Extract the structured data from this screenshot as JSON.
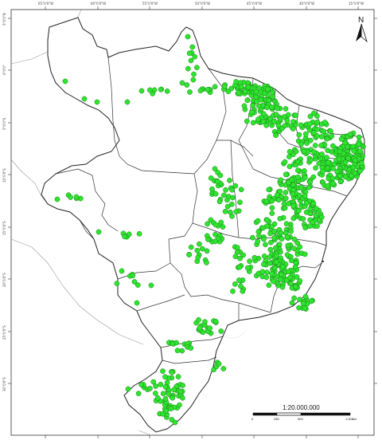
{
  "map": {
    "north_label": "N",
    "scale_text": "1:20.000.000",
    "scale_bar_labels": [
      "0",
      "250",
      "500",
      "1.000"
    ],
    "scale_bar_unit": "km",
    "top_tick_labels": [
      "65°0'0\"W",
      "60°0'0\"W",
      "55°0'0\"W",
      "50°0'0\"W",
      "45°0'0\"W",
      "40°0'0\"W",
      "35°0'0\"W"
    ],
    "left_tick_labels": [
      "5°0'0\"N",
      "0°0'0\"",
      "5°0'0\"S",
      "10°0'0\"S",
      "15°0'0\"S",
      "20°0'0\"S",
      "25°0'0\"S",
      "30°0'0\"S"
    ],
    "colors": {
      "occurrence_point": "#2ee52e",
      "point_stroke": "#1a7a1a",
      "brazil_fill": "#ffffff",
      "state_border": "#2a2a2a",
      "municipal_lines": "#c8c8c8",
      "neighbor_lines": "#888888"
    }
  }
}
